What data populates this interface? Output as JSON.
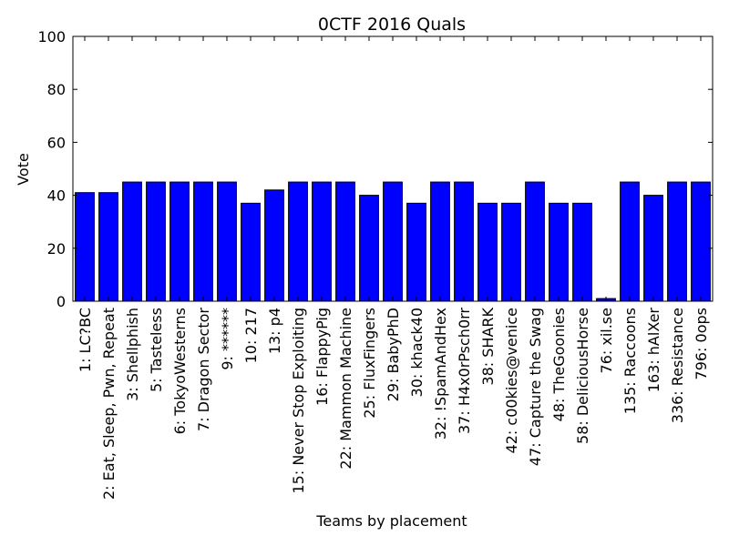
{
  "chart_data": {
    "type": "bar",
    "title": "0CTF 2016 Quals",
    "xlabel": "Teams by placement",
    "ylabel": "Vote",
    "ylim": [
      0,
      100
    ],
    "yticks": [
      0,
      20,
      40,
      60,
      80,
      100
    ],
    "grid": false,
    "bar_color": "#0000ff",
    "categories": [
      "1: LC?BC",
      "2: Eat, Sleep, Pwn, Repeat",
      "3: Shellphish",
      "5: Tasteless",
      "6: TokyoWesterns",
      "7: Dragon Sector",
      "9: ******",
      "10: 217",
      "13: p4",
      "15: Never Stop Exploiting",
      "16: FlappyPig",
      "22: Mammon Machine",
      "25: FluxFingers",
      "29: BabyPhD",
      "30: khack40",
      "32: !SpamAndHex",
      "37: H4x0rPsch0rr",
      "38: SHARK",
      "42: c00kies@venice",
      "47: Capture the Swag",
      "48: TheGoonies",
      "58: DeliciousHorse",
      "76: xil.se",
      "135: Raccoons",
      "163: hAlXer",
      "336: Resistance",
      "796: 0ops"
    ],
    "values": [
      41,
      41,
      45,
      45,
      45,
      45,
      45,
      37,
      42,
      45,
      45,
      45,
      40,
      45,
      37,
      45,
      45,
      37,
      37,
      45,
      37,
      37,
      1,
      45,
      40,
      45,
      45
    ]
  }
}
